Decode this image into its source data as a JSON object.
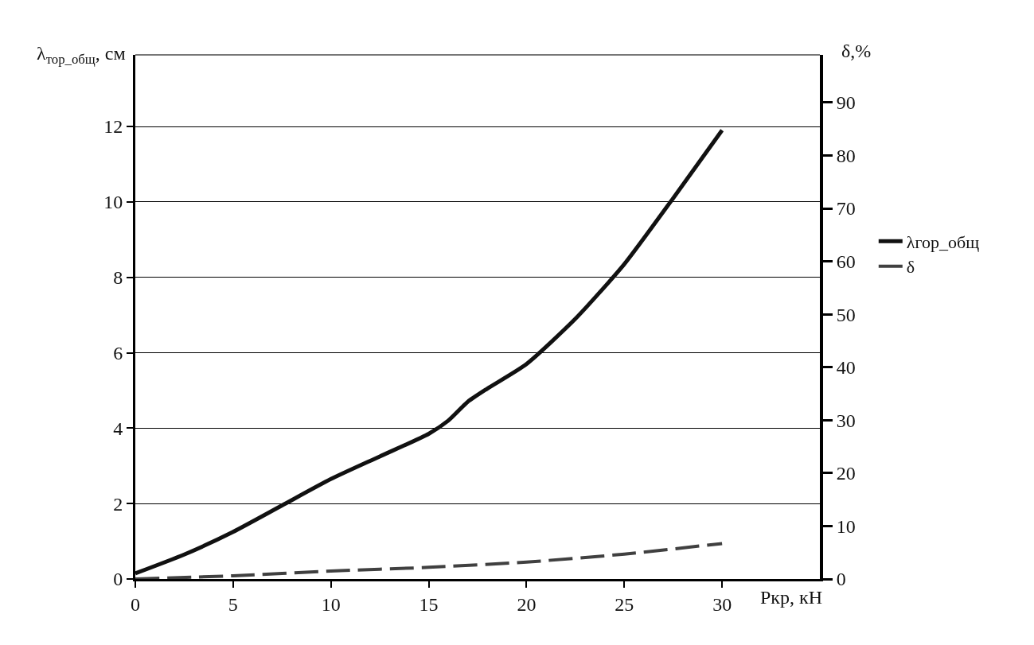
{
  "chart_data": {
    "type": "line",
    "xlabel": "Ркр, кН",
    "ylabel": "λ$_{тор_общ}$, см",
    "y2label": "δ,%",
    "x": [
      0,
      2.5,
      5,
      7.5,
      10,
      12.5,
      15,
      16,
      17,
      18,
      20,
      22.5,
      25,
      27.5,
      30
    ],
    "series": [
      {
        "name": "λгор_общ",
        "color": "#111111",
        "line_style": "solid",
        "values": [
          0.15,
          0.65,
          1.25,
          1.95,
          2.65,
          3.25,
          3.85,
          4.2,
          4.7,
          5.05,
          5.7,
          6.9,
          8.35,
          10.1,
          11.9
        ]
      },
      {
        "name": "δ",
        "color": "#404040",
        "line_style": "dashed",
        "axis": "y2",
        "x": [
          0,
          5,
          10,
          15,
          20,
          25,
          30
        ],
        "values": [
          0,
          0.6,
          1.5,
          2.2,
          3.2,
          4.7,
          6.7
        ]
      }
    ],
    "xlim": [
      0,
      35
    ],
    "xticks": [
      0,
      5,
      10,
      15,
      20,
      25,
      30
    ],
    "ylim": [
      0,
      13.9
    ],
    "yticks": [
      0,
      2,
      4,
      6,
      8,
      10,
      12
    ],
    "y2lim": [
      0,
      99
    ],
    "y2ticks": [
      0,
      10,
      20,
      30,
      40,
      50,
      60,
      70,
      80,
      90
    ],
    "grid": "y",
    "legend": "right"
  }
}
